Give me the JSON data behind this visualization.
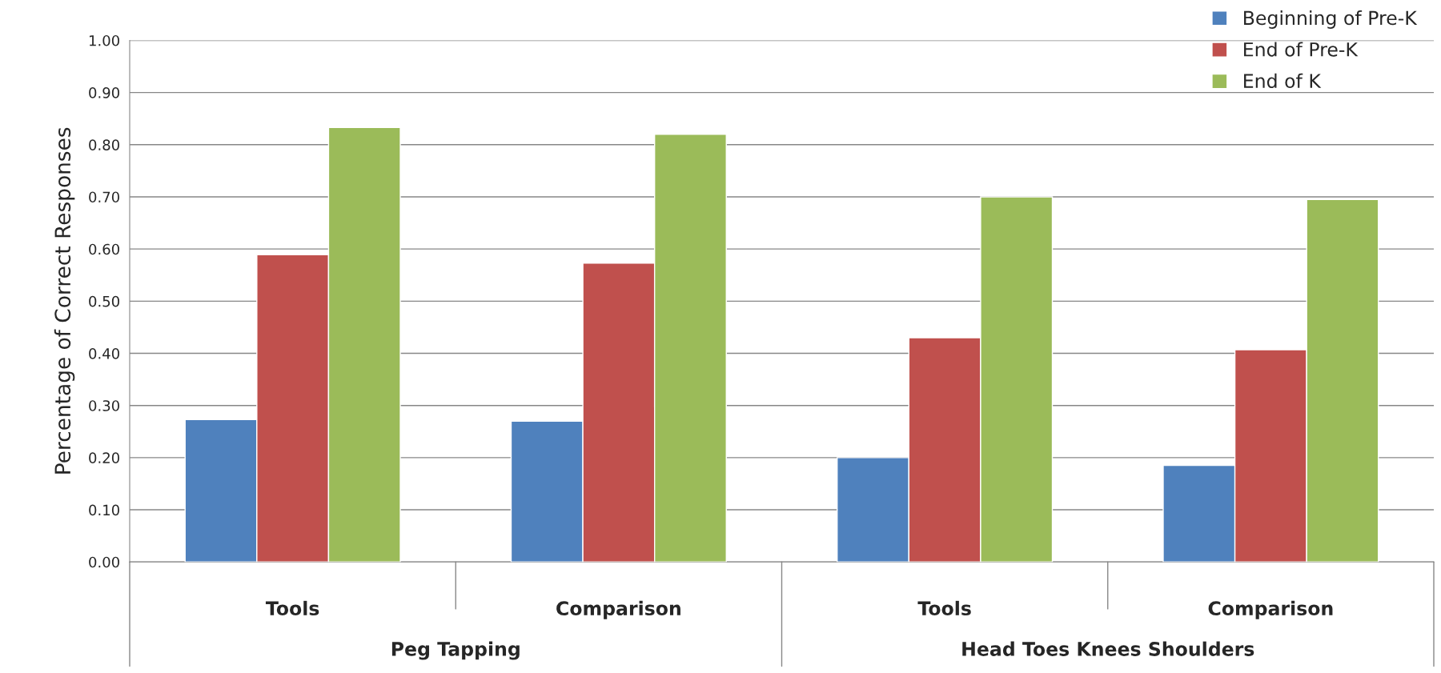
{
  "chart_data": {
    "type": "bar",
    "ylabel": "Percentage of Correct Responses",
    "categories": [
      "Tools",
      "Comparison",
      "Tools",
      "Comparison"
    ],
    "annotations": [
      "Peg Tapping",
      "Head Toes Knees Shoulders"
    ],
    "series": [
      {
        "name": "Beginning of Pre-K",
        "color": "#4f81bd",
        "values": [
          0.273,
          0.27,
          0.2,
          0.185
        ]
      },
      {
        "name": "End of Pre-K",
        "color": "#c0504d",
        "values": [
          0.589,
          0.573,
          0.43,
          0.407
        ]
      },
      {
        "name": "End of K",
        "color": "#9bbb59",
        "values": [
          0.833,
          0.82,
          0.7,
          0.695
        ]
      }
    ],
    "ylim": [
      0,
      1.0
    ],
    "yticks": [
      {
        "value": 0,
        "label": "0.00"
      },
      {
        "value": 0.1,
        "label": "0.10"
      },
      {
        "value": 0.2,
        "label": "0.20"
      },
      {
        "value": 0.3,
        "label": "0.30"
      },
      {
        "value": 0.4,
        "label": "0.40"
      },
      {
        "value": 0.5,
        "label": "0.50"
      },
      {
        "value": 0.6,
        "label": "0.60"
      },
      {
        "value": 0.7,
        "label": "0.70"
      },
      {
        "value": 0.8,
        "label": "0.80"
      },
      {
        "value": 0.9,
        "label": "0.90"
      },
      {
        "value": 1.0,
        "label": "1.00"
      }
    ],
    "grid": "y",
    "legend": "top right"
  }
}
